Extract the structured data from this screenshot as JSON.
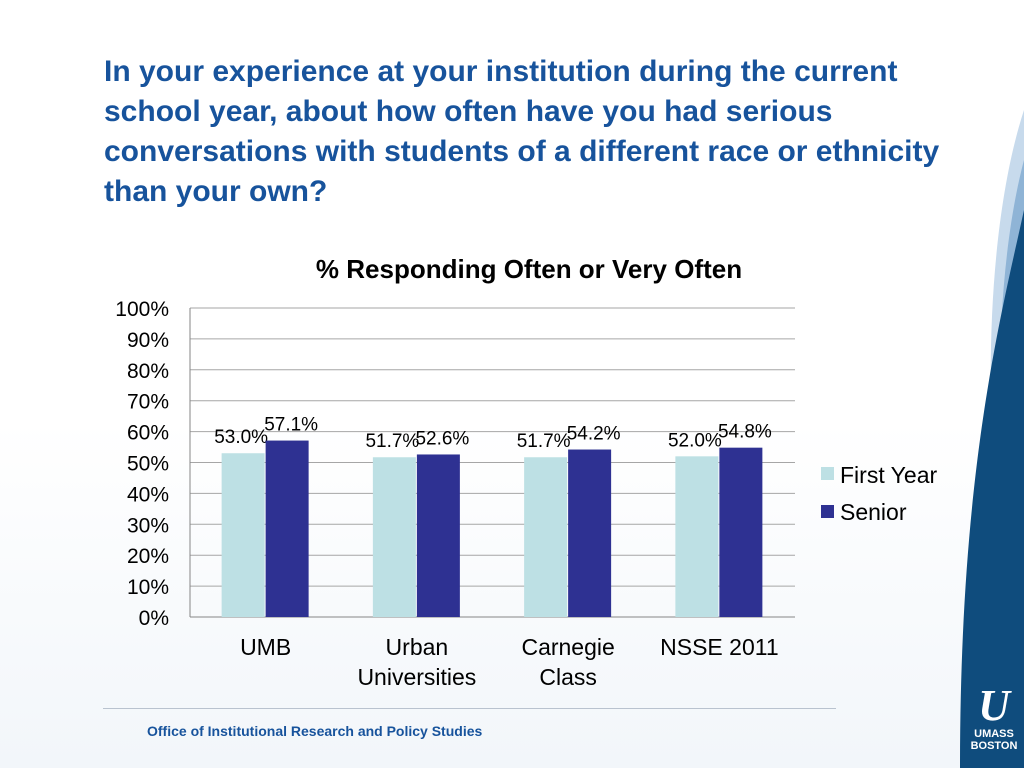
{
  "slide": {
    "question": "In your experience at your institution during the current school year, about how often have you had serious conversations with students of a different race or ethnicity than your own?",
    "footer": "Office of Institutional Research and Policy Studies",
    "logo": {
      "mark": "U",
      "line1": "UMASS",
      "line2": "BOSTON"
    },
    "colors": {
      "title": "#17539c",
      "swoosh_dark": "#0f4c7d",
      "swoosh_light": "#b8d0e6"
    }
  },
  "chart_data": {
    "type": "bar",
    "title": "% Responding Often or Very Often",
    "categories": [
      [
        "UMB"
      ],
      [
        "Urban",
        "Universities"
      ],
      [
        "Carnegie",
        "Class"
      ],
      [
        "NSSE 2011"
      ]
    ],
    "series": [
      {
        "name": "First Year",
        "color": "#bde0e4",
        "values": [
          53.0,
          51.7,
          51.7,
          52.0
        ],
        "labels": [
          "53.0%",
          "51.7%",
          "51.7%",
          "52.0%"
        ]
      },
      {
        "name": "Senior",
        "color": "#2e3192",
        "values": [
          57.1,
          52.6,
          54.2,
          54.8
        ],
        "labels": [
          "57.1%",
          "52.6%",
          "54.2%",
          "54.8%"
        ]
      }
    ],
    "ylim": [
      0,
      100
    ],
    "yticks": [
      "0%",
      "10%",
      "20%",
      "30%",
      "40%",
      "50%",
      "60%",
      "70%",
      "80%",
      "90%",
      "100%"
    ],
    "grid": true,
    "legend": "right"
  }
}
